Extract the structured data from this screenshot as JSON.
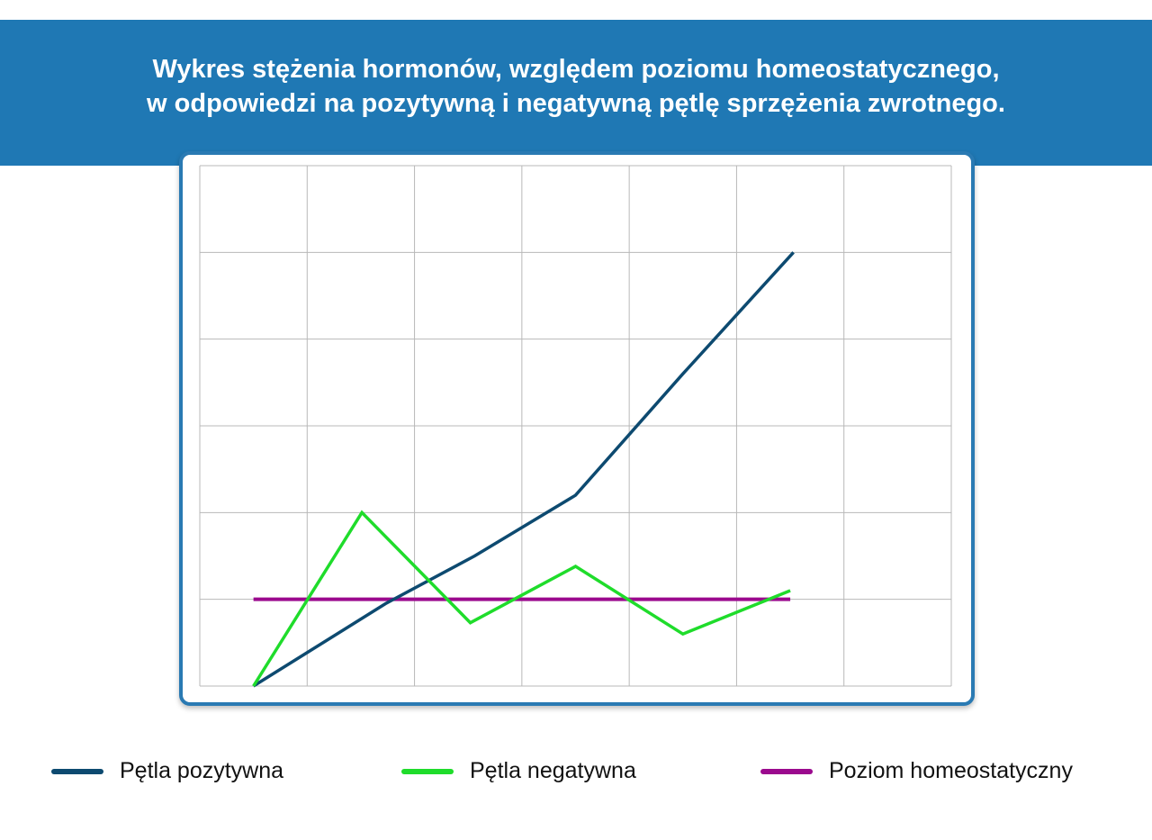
{
  "title_lines": [
    "Wykres stężenia hormonów, względem poziomu homeostatycznego,",
    "w odpowiedzi na pozytywną i negatywną pętlę sprzężenia zwrotnego."
  ],
  "colors": {
    "banner": "#1f78b4",
    "frame": "#2a7ab3"
  },
  "chart_data": {
    "type": "line",
    "title": "Wykres stężenia hormonów, względem poziomu homeostatycznego, w odpowiedzi na pozytywną i negatywną pętlę sprzężenia zwrotnego.",
    "xlabel": "",
    "ylabel": "",
    "xlim": [
      0,
      7
    ],
    "ylim": [
      0,
      6
    ],
    "grid": true,
    "axis_tick_labels": false,
    "legend_position": "bottom",
    "series": [
      {
        "name": "Pętla pozytywna",
        "color": "#0d4a70",
        "x": [
          0.5,
          1.73,
          2.56,
          3.5,
          4.5,
          5.53
        ],
        "y": [
          0,
          0.95,
          1.5,
          2.2,
          3.6,
          5.0
        ]
      },
      {
        "name": "Pętla negatywna",
        "color": "#1fdc2b",
        "x": [
          0.5,
          1.51,
          2.52,
          3.5,
          4.5,
          5.5
        ],
        "y": [
          0,
          2.0,
          0.73,
          1.38,
          0.6,
          1.1
        ]
      },
      {
        "name": "Poziom homeostatyczny",
        "color": "#9b0a8e",
        "x": [
          0.5,
          5.5
        ],
        "y": [
          1,
          1
        ]
      }
    ]
  }
}
